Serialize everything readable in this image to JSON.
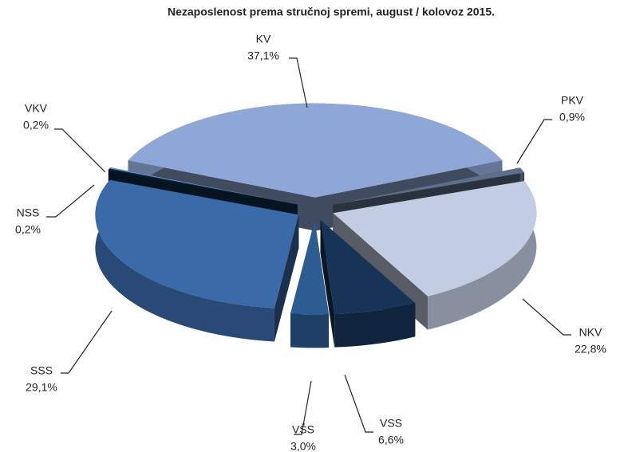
{
  "chart_data": {
    "type": "pie3d",
    "title": "Nezaposlenost prema stručnoj spremi, august / kolovoz 2015.",
    "categories": [
      "KV",
      "PKV",
      "NKV",
      "VSS",
      "VŠS",
      "SSS",
      "NSS",
      "VKV"
    ],
    "values": [
      37.1,
      0.9,
      22.8,
      6.6,
      3.0,
      29.1,
      0.2,
      0.2
    ],
    "value_labels": [
      "37,1%",
      "0,9%",
      "22,8%",
      "6,6%",
      "3,0%",
      "29,1%",
      "0,2%",
      "0,2%"
    ],
    "colors": [
      "#8fa7d6",
      "#5e6f8a",
      "#c2cde3",
      "#173457",
      "#2d5c92",
      "#3a6aa8",
      "#0d2a4a",
      "#6a8ec8"
    ]
  }
}
